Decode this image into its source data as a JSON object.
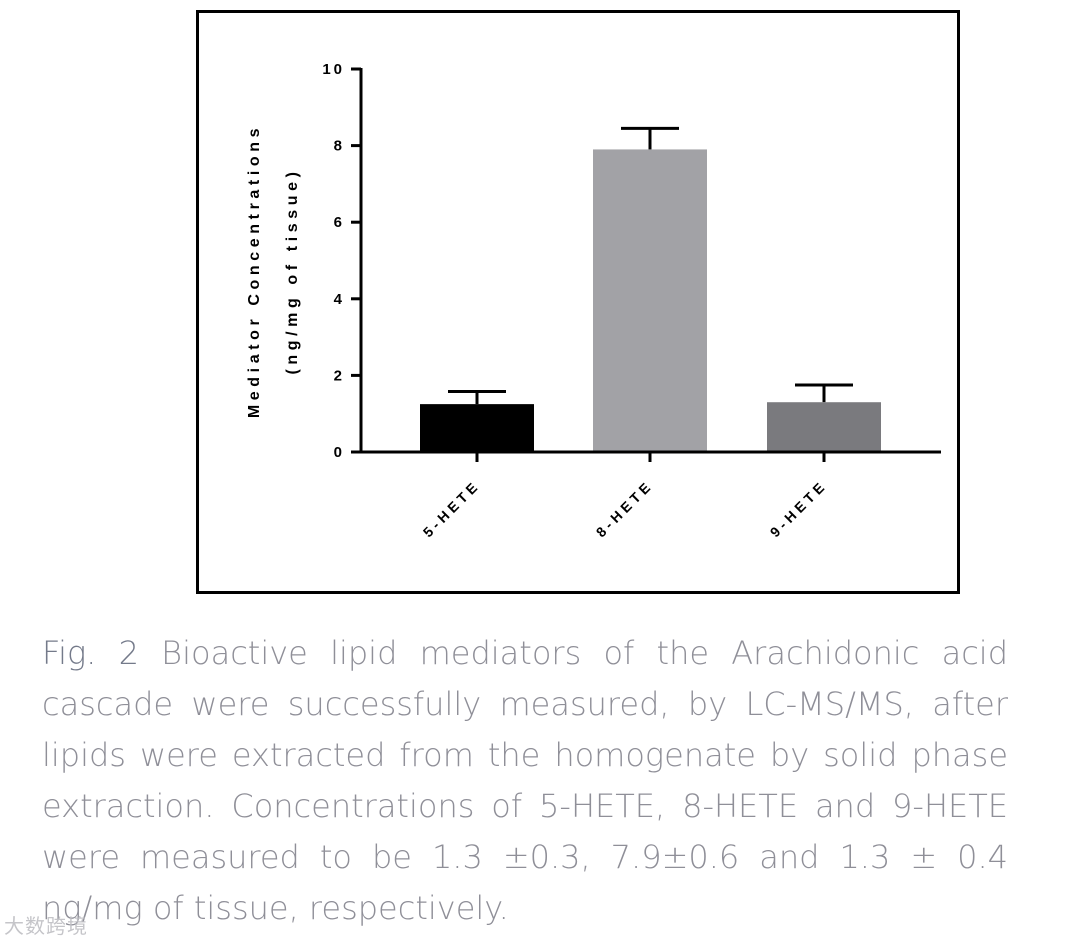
{
  "chart_data": {
    "type": "bar",
    "categories": [
      "5-HETE",
      "8-HETE",
      "9-HETE"
    ],
    "values": [
      1.25,
      7.9,
      1.3
    ],
    "error_high": [
      1.58,
      8.45,
      1.75
    ],
    "colors": [
      "#000000",
      "#a2a2a6",
      "#7a7a7e"
    ],
    "ylabel_line1": "Mediator Concentrations",
    "ylabel_line2": "(ng/mg of tissue)",
    "ylim": [
      0,
      10
    ],
    "yticks": [
      "0",
      "2",
      "4",
      "6",
      "8",
      "10"
    ],
    "grid": false,
    "legend": "none"
  },
  "caption": {
    "label": "Fig. 2",
    "text": " Bioactive lipid mediators of the Arachidonic acid cascade were successfully measured, by LC-MS/MS, after lipids were extracted from the homogenate by solid phase extraction. Concentrations of 5-HETE, 8-HETE and 9-HETE were measured to be 1.3 ±0.3, 7.9±0.6 and 1.3 ± 0.4 ng/mg of tissue, respectively."
  },
  "watermark": "大数跨境"
}
